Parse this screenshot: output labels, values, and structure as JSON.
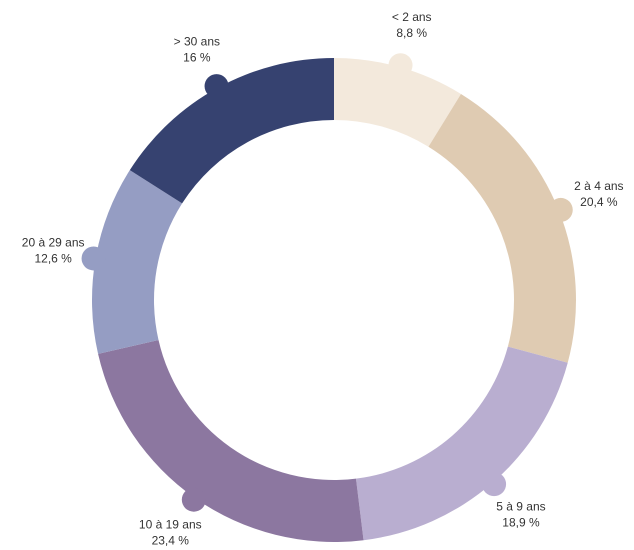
{
  "chart_data": {
    "type": "donut",
    "categories": [
      "< 2 ans",
      "2 à 4 ans",
      "5 à 9 ans",
      "10 à 19 ans",
      "20 à 29 ans",
      "> 30 ans"
    ],
    "values": [
      8.8,
      20.4,
      18.9,
      23.4,
      12.6,
      16
    ],
    "value_labels": [
      "8,8 %",
      "20,4 %",
      "18,9 %",
      "23,4 %",
      "12,6 %",
      "16 %"
    ],
    "colors": [
      "#f3e9dc",
      "#dfcbb2",
      "#b9aed0",
      "#8c77a0",
      "#959dc3",
      "#364270"
    ]
  }
}
